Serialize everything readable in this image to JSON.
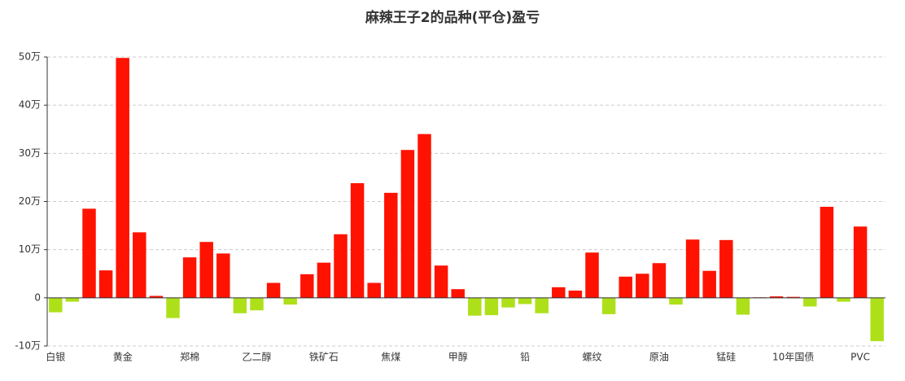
{
  "chart_data": {
    "type": "bar",
    "title": "麻辣王子2的品种(平仓)盈亏",
    "categories": [
      "白银",
      null,
      null,
      null,
      "黄金",
      null,
      null,
      null,
      "郑棉",
      null,
      null,
      null,
      "乙二醇",
      null,
      null,
      null,
      "铁矿石",
      null,
      null,
      null,
      "焦煤",
      null,
      null,
      null,
      "甲醇",
      null,
      null,
      null,
      "铅",
      null,
      null,
      null,
      "螺纹",
      null,
      null,
      null,
      "原油",
      null,
      null,
      null,
      "锰硅",
      null,
      null,
      null,
      "10年国债",
      null,
      null,
      null,
      "PVC",
      null
    ],
    "values": [
      -3,
      -0.8,
      18.5,
      5.7,
      49.8,
      13.6,
      0.4,
      -4.2,
      8.4,
      11.6,
      9.2,
      -3.2,
      -2.6,
      3.1,
      -1.4,
      4.9,
      7.3,
      13.2,
      23.8,
      3.1,
      21.8,
      30.7,
      34.0,
      6.7,
      1.8,
      -3.7,
      -3.6,
      -2.0,
      -1.3,
      -3.2,
      2.2,
      1.5,
      9.4,
      -3.4,
      4.4,
      5.0,
      7.2,
      -1.4,
      12.1,
      5.6,
      12.0,
      -3.5,
      0.1,
      0.3,
      0.2,
      -1.8,
      18.9,
      -0.8,
      14.8,
      -9.0
    ],
    "positive_color": "#ff1200",
    "negative_color": "#aee01a",
    "ylim": [
      -10,
      50
    ],
    "yticks": [
      {
        "value": -10,
        "label": "-10万"
      },
      0,
      {
        "value": 10,
        "label": "10万"
      },
      {
        "value": 20,
        "label": "20万"
      },
      {
        "value": 30,
        "label": "30万"
      },
      {
        "value": 40,
        "label": "40万"
      },
      {
        "value": 50,
        "label": "50万"
      }
    ],
    "grid": true
  }
}
